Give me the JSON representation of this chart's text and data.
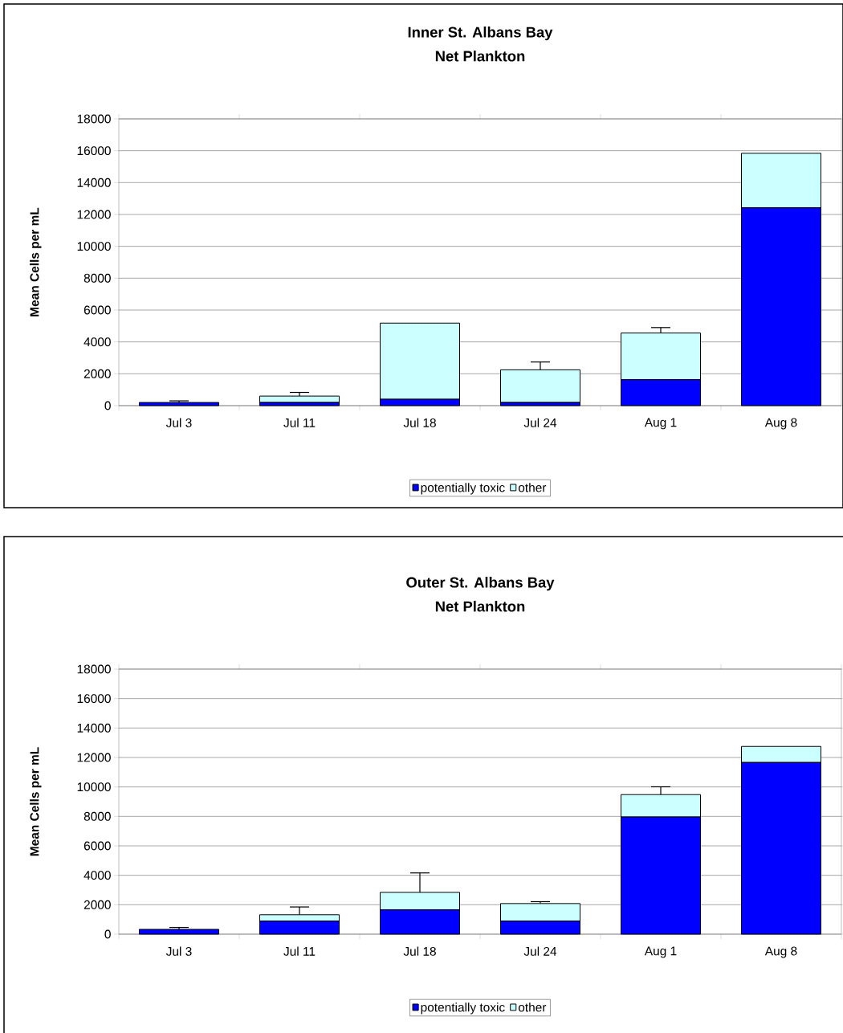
{
  "chart_data": [
    {
      "type": "bar",
      "title": "Inner St. Albans Bay",
      "subtitle": "Net Plankton",
      "ylabel": "Mean Cells per mL",
      "categories": [
        "Jul 3",
        "Jul 11",
        "Jul 18",
        "Jul 24",
        "Aug 1",
        "Aug 8"
      ],
      "stacked": true,
      "ylim": [
        0,
        18000
      ],
      "yticks": [
        0,
        2000,
        4000,
        6000,
        8000,
        10000,
        12000,
        14000,
        16000,
        18000
      ],
      "grid": "y",
      "legend": "bottom",
      "series": [
        {
          "name": "potentially toxic",
          "color": "#0000ff",
          "values": [
            200,
            200,
            400,
            200,
            1630,
            12420
          ],
          "errors": [
            [
              200,
              300
            ],
            null,
            null,
            null,
            null,
            null
          ]
        },
        {
          "name": "other",
          "color": "#ccffff",
          "values": [
            null,
            400,
            4780,
            2050,
            2930,
            3420
          ],
          "errors": [
            null,
            [
              600,
              830
            ],
            null,
            [
              2250,
              2740
            ],
            [
              4560,
              4900
            ],
            null
          ]
        }
      ]
    },
    {
      "type": "bar",
      "title": "Outer St. Albans Bay",
      "subtitle": "Net Plankton",
      "ylabel": "Mean Cells per mL",
      "categories": [
        "Jul 3",
        "Jul 11",
        "Jul 18",
        "Jul 24",
        "Aug 1",
        "Aug 8"
      ],
      "stacked": true,
      "ylim": [
        0,
        18000
      ],
      "yticks": [
        0,
        2000,
        4000,
        6000,
        8000,
        10000,
        12000,
        14000,
        16000,
        18000
      ],
      "grid": "y",
      "legend": "bottom",
      "series": [
        {
          "name": "potentially toxic",
          "color": "#0000ff",
          "values": [
            330,
            890,
            1650,
            890,
            7960,
            11660
          ],
          "errors": [
            [
              330,
              460
            ],
            null,
            null,
            null,
            null,
            null
          ]
        },
        {
          "name": "other",
          "color": "#ccffff",
          "values": [
            null,
            430,
            1190,
            1190,
            1520,
            1090
          ],
          "errors": [
            null,
            [
              1320,
              1850
            ],
            [
              2840,
              4160
            ],
            [
              2080,
              2210
            ],
            [
              9480,
              10010
            ],
            null
          ]
        }
      ]
    }
  ]
}
